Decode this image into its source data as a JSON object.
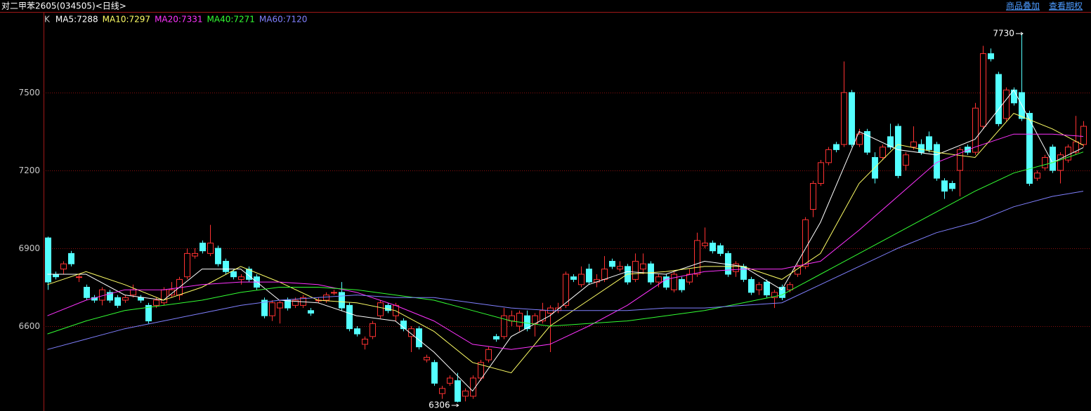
{
  "toolbar": {
    "links": [
      "商品叠加",
      "查看期权"
    ]
  },
  "chart_data": {
    "type": "candlestick",
    "title": "对二甲苯2605(034505)<日线>",
    "indicator": "K",
    "up_color": "#ff3232",
    "down_color": "#54ffff",
    "grid_color": "#8a1010",
    "grid": true,
    "ylim": [
      6273,
      7808
    ],
    "xlim": [
      -0.5,
      135
    ],
    "yticks": [
      6600,
      6900,
      7200,
      7500
    ],
    "ohlc": [
      [
        6940,
        6945,
        6740,
        6770
      ],
      [
        6800,
        6810,
        6780,
        6790
      ],
      [
        6820,
        6850,
        6800,
        6840
      ],
      [
        6880,
        6890,
        6830,
        6840
      ],
      [
        6790,
        6800,
        6770,
        6790
      ],
      [
        6750,
        6760,
        6700,
        6710
      ],
      [
        6710,
        6720,
        6690,
        6700
      ],
      [
        6700,
        6750,
        6680,
        6740
      ],
      [
        6730,
        6740,
        6690,
        6700
      ],
      [
        6710,
        6720,
        6670,
        6680
      ],
      [
        6700,
        6720,
        6690,
        6710
      ],
      [
        6720,
        6760,
        6710,
        6740
      ],
      [
        6710,
        6720,
        6690,
        6700
      ],
      [
        6680,
        6690,
        6610,
        6620
      ],
      [
        6680,
        6710,
        6670,
        6700
      ],
      [
        6690,
        6750,
        6680,
        6740
      ],
      [
        6720,
        6770,
        6710,
        6740
      ],
      [
        6720,
        6790,
        6700,
        6780
      ],
      [
        6790,
        6900,
        6780,
        6880
      ],
      [
        6870,
        6900,
        6860,
        6880
      ],
      [
        6920,
        6930,
        6880,
        6890
      ],
      [
        6880,
        6990,
        6870,
        6920
      ],
      [
        6900,
        6910,
        6830,
        6840
      ],
      [
        6850,
        6860,
        6800,
        6810
      ],
      [
        6810,
        6820,
        6780,
        6790
      ],
      [
        6780,
        6800,
        6760,
        6790
      ],
      [
        6820,
        6830,
        6770,
        6780
      ],
      [
        6790,
        6800,
        6740,
        6750
      ],
      [
        6700,
        6710,
        6630,
        6640
      ],
      [
        6640,
        6700,
        6620,
        6690
      ],
      [
        6670,
        6700,
        6610,
        6690
      ],
      [
        6700,
        6710,
        6660,
        6670
      ],
      [
        6680,
        6710,
        6670,
        6700
      ],
      [
        6680,
        6720,
        6670,
        6710
      ],
      [
        6660,
        6670,
        6640,
        6650
      ],
      [
        6700,
        6710,
        6690,
        6700
      ],
      [
        6700,
        6730,
        6690,
        6720
      ],
      [
        6730,
        6740,
        6720,
        6730
      ],
      [
        6730,
        6770,
        6660,
        6670
      ],
      [
        6680,
        6690,
        6580,
        6590
      ],
      [
        6590,
        6600,
        6560,
        6570
      ],
      [
        6530,
        6560,
        6510,
        6550
      ],
      [
        6560,
        6620,
        6550,
        6610
      ],
      [
        6640,
        6700,
        6630,
        6690
      ],
      [
        6680,
        6690,
        6650,
        6660
      ],
      [
        6640,
        6690,
        6620,
        6680
      ],
      [
        6620,
        6630,
        6580,
        6590
      ],
      [
        6560,
        6600,
        6500,
        6590
      ],
      [
        6590,
        6600,
        6510,
        6520
      ],
      [
        6470,
        6490,
        6460,
        6480
      ],
      [
        6460,
        6470,
        6370,
        6380
      ],
      [
        6340,
        6370,
        6320,
        6360
      ],
      [
        6380,
        6410,
        6370,
        6400
      ],
      [
        6390,
        6420,
        6306,
        6310
      ],
      [
        6330,
        6360,
        6310,
        6350
      ],
      [
        6330,
        6410,
        6320,
        6400
      ],
      [
        6400,
        6470,
        6390,
        6460
      ],
      [
        6470,
        6520,
        6460,
        6510
      ],
      [
        6560,
        6570,
        6540,
        6550
      ],
      [
        6560,
        6670,
        6550,
        6640
      ],
      [
        6620,
        6660,
        6600,
        6640
      ],
      [
        6600,
        6660,
        6580,
        6650
      ],
      [
        6640,
        6660,
        6580,
        6590
      ],
      [
        6610,
        6650,
        6560,
        6640
      ],
      [
        6620,
        6690,
        6610,
        6660
      ],
      [
        6650,
        6680,
        6500,
        6670
      ],
      [
        6660,
        6690,
        6650,
        6670
      ],
      [
        6680,
        6810,
        6670,
        6800
      ],
      [
        6790,
        6800,
        6770,
        6780
      ],
      [
        6760,
        6830,
        6750,
        6800
      ],
      [
        6820,
        6840,
        6760,
        6770
      ],
      [
        6770,
        6800,
        6750,
        6780
      ],
      [
        6780,
        6870,
        6770,
        6820
      ],
      [
        6850,
        6860,
        6820,
        6830
      ],
      [
        6820,
        6850,
        6810,
        6830
      ],
      [
        6830,
        6840,
        6760,
        6770
      ],
      [
        6780,
        6880,
        6770,
        6850
      ],
      [
        6820,
        6880,
        6800,
        6840
      ],
      [
        6840,
        6850,
        6760,
        6770
      ],
      [
        6770,
        6800,
        6750,
        6790
      ],
      [
        6790,
        6800,
        6740,
        6750
      ],
      [
        6740,
        6810,
        6730,
        6800
      ],
      [
        6780,
        6790,
        6730,
        6740
      ],
      [
        6770,
        6820,
        6760,
        6800
      ],
      [
        6800,
        6960,
        6790,
        6930
      ],
      [
        6910,
        6980,
        6900,
        6920
      ],
      [
        6920,
        6930,
        6880,
        6890
      ],
      [
        6910,
        6920,
        6870,
        6880
      ],
      [
        6880,
        6890,
        6790,
        6800
      ],
      [
        6810,
        6850,
        6790,
        6840
      ],
      [
        6830,
        6840,
        6770,
        6780
      ],
      [
        6780,
        6790,
        6720,
        6730
      ],
      [
        6740,
        6770,
        6720,
        6760
      ],
      [
        6770,
        6780,
        6710,
        6720
      ],
      [
        6710,
        6740,
        6670,
        6730
      ],
      [
        6750,
        6760,
        6700,
        6710
      ],
      [
        6740,
        6770,
        6730,
        6760
      ],
      [
        6800,
        6840,
        6790,
        6830
      ],
      [
        6830,
        7020,
        6820,
        7010
      ],
      [
        7050,
        7160,
        7020,
        7150
      ],
      [
        7150,
        7240,
        7140,
        7230
      ],
      [
        7230,
        7290,
        7220,
        7280
      ],
      [
        7300,
        7310,
        7270,
        7280
      ],
      [
        7300,
        7620,
        7290,
        7500
      ],
      [
        7500,
        7510,
        7290,
        7300
      ],
      [
        7300,
        7360,
        7290,
        7340
      ],
      [
        7350,
        7360,
        7260,
        7270
      ],
      [
        7250,
        7270,
        7150,
        7170
      ],
      [
        7250,
        7300,
        7240,
        7290
      ],
      [
        7330,
        7380,
        7280,
        7290
      ],
      [
        7370,
        7380,
        7170,
        7180
      ],
      [
        7220,
        7270,
        7200,
        7260
      ],
      [
        7290,
        7370,
        7280,
        7310
      ],
      [
        7300,
        7320,
        7260,
        7270
      ],
      [
        7330,
        7350,
        7270,
        7280
      ],
      [
        7300,
        7310,
        7160,
        7170
      ],
      [
        7160,
        7170,
        7090,
        7120
      ],
      [
        7150,
        7160,
        7120,
        7130
      ],
      [
        7200,
        7290,
        7100,
        7280
      ],
      [
        7290,
        7300,
        7260,
        7270
      ],
      [
        7270,
        7460,
        7260,
        7440
      ],
      [
        7370,
        7680,
        7360,
        7650
      ],
      [
        7650,
        7670,
        7620,
        7630
      ],
      [
        7570,
        7580,
        7370,
        7380
      ],
      [
        7400,
        7520,
        7390,
        7510
      ],
      [
        7510,
        7520,
        7450,
        7460
      ],
      [
        7500,
        7730,
        7390,
        7400
      ],
      [
        7420,
        7430,
        7140,
        7150
      ],
      [
        7170,
        7200,
        7160,
        7190
      ],
      [
        7210,
        7260,
        7200,
        7250
      ],
      [
        7290,
        7300,
        7190,
        7200
      ],
      [
        7200,
        7270,
        7150,
        7260
      ],
      [
        7240,
        7300,
        7230,
        7290
      ],
      [
        7270,
        7410,
        7260,
        7310
      ],
      [
        7300,
        7390,
        7290,
        7370
      ]
    ],
    "ma_x": [
      0,
      5,
      10,
      15,
      20,
      25,
      30,
      35,
      40,
      45,
      50,
      55,
      60,
      65,
      70,
      75,
      80,
      85,
      90,
      95,
      100,
      105,
      110,
      115,
      120,
      125,
      130,
      134
    ],
    "series": [
      {
        "name": "MA5:7288",
        "color": "#ffffff",
        "values": [
          6800,
          6800,
          6720,
          6700,
          6820,
          6820,
          6700,
          6690,
          6640,
          6620,
          6500,
          6350,
          6560,
          6640,
          6760,
          6810,
          6800,
          6850,
          6830,
          6740,
          7000,
          7350,
          7280,
          7260,
          7320,
          7510,
          7230,
          7288
        ]
      },
      {
        "name": "MA10:7297",
        "color": "#ffff66",
        "values": [
          6760,
          6810,
          6760,
          6700,
          6750,
          6830,
          6770,
          6700,
          6690,
          6660,
          6580,
          6460,
          6420,
          6600,
          6700,
          6800,
          6810,
          6830,
          6830,
          6780,
          6880,
          7150,
          7300,
          7270,
          7250,
          7420,
          7360,
          7297
        ]
      },
      {
        "name": "MA20:7331",
        "color": "#ff33ff",
        "values": [
          6640,
          6700,
          6740,
          6740,
          6760,
          6770,
          6770,
          6760,
          6730,
          6680,
          6620,
          6530,
          6510,
          6530,
          6600,
          6680,
          6780,
          6810,
          6820,
          6820,
          6850,
          6970,
          7100,
          7230,
          7290,
          7340,
          7340,
          7331
        ]
      },
      {
        "name": "MA40:7271",
        "color": "#33ff33",
        "values": [
          6570,
          6620,
          6660,
          6680,
          6700,
          6730,
          6750,
          6750,
          6740,
          6720,
          6700,
          6660,
          6620,
          6600,
          6610,
          6620,
          6640,
          6660,
          6690,
          6720,
          6800,
          6880,
          6960,
          7040,
          7120,
          7190,
          7230,
          7271
        ]
      },
      {
        "name": "MA60:7120",
        "color": "#8080ff",
        "values": [
          6510,
          6550,
          6590,
          6620,
          6650,
          6680,
          6700,
          6710,
          6720,
          6710,
          6710,
          6690,
          6670,
          6660,
          6660,
          6660,
          6670,
          6670,
          6680,
          6690,
          6760,
          6830,
          6900,
          6960,
          7000,
          7060,
          7100,
          7120
        ]
      }
    ]
  }
}
